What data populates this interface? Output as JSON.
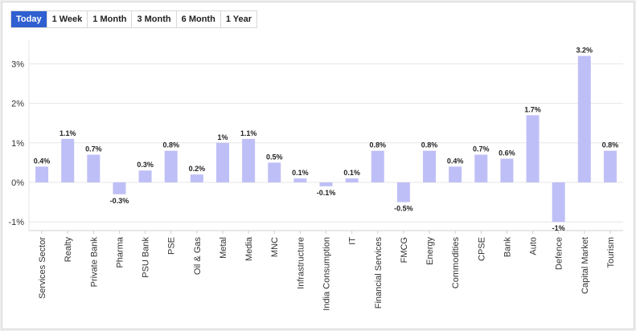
{
  "tabs": [
    {
      "label": "Today",
      "active": true
    },
    {
      "label": "1 Week",
      "active": false
    },
    {
      "label": "1 Month",
      "active": false
    },
    {
      "label": "3 Month",
      "active": false
    },
    {
      "label": "6 Month",
      "active": false
    },
    {
      "label": "1 Year",
      "active": false
    }
  ],
  "chart_data": {
    "type": "bar",
    "title": "",
    "xlabel": "",
    "ylabel": "",
    "ylim": [
      -1,
      3
    ],
    "yticks": [
      -1,
      0,
      1,
      2,
      3
    ],
    "ytick_labels": [
      "-1%",
      "0%",
      "1%",
      "2%",
      "3%"
    ],
    "grid": true,
    "bar_color": "#bfbff7",
    "categories": [
      "Services Sector",
      "Realty",
      "Private Bank",
      "Pharma",
      "PSU Bank",
      "PSE",
      "Oil & Gas",
      "Metal",
      "Media",
      "MNC",
      "Infrastructure",
      "India Consumption",
      "IT",
      "Financial Services",
      "FMCG",
      "Energy",
      "Commodities",
      "CPSE",
      "Bank",
      "Auto",
      "Defence",
      "Capital Market",
      "Tourism"
    ],
    "values": [
      0.4,
      1.1,
      0.7,
      -0.3,
      0.3,
      0.8,
      0.2,
      1,
      1.1,
      0.5,
      0.1,
      -0.1,
      0.1,
      0.8,
      -0.5,
      0.8,
      0.4,
      0.7,
      0.6,
      1.7,
      -1,
      3.2,
      0.8
    ],
    "data_labels": [
      "0.4%",
      "1.1%",
      "0.7%",
      "-0.3%",
      "0.3%",
      "0.8%",
      "0.2%",
      "1%",
      "1.1%",
      "0.5%",
      "0.1%",
      "-0.1%",
      "0.1%",
      "0.8%",
      "-0.5%",
      "0.8%",
      "0.4%",
      "0.7%",
      "0.6%",
      "1.7%",
      "-1%",
      "3.2%",
      "0.8%"
    ]
  }
}
